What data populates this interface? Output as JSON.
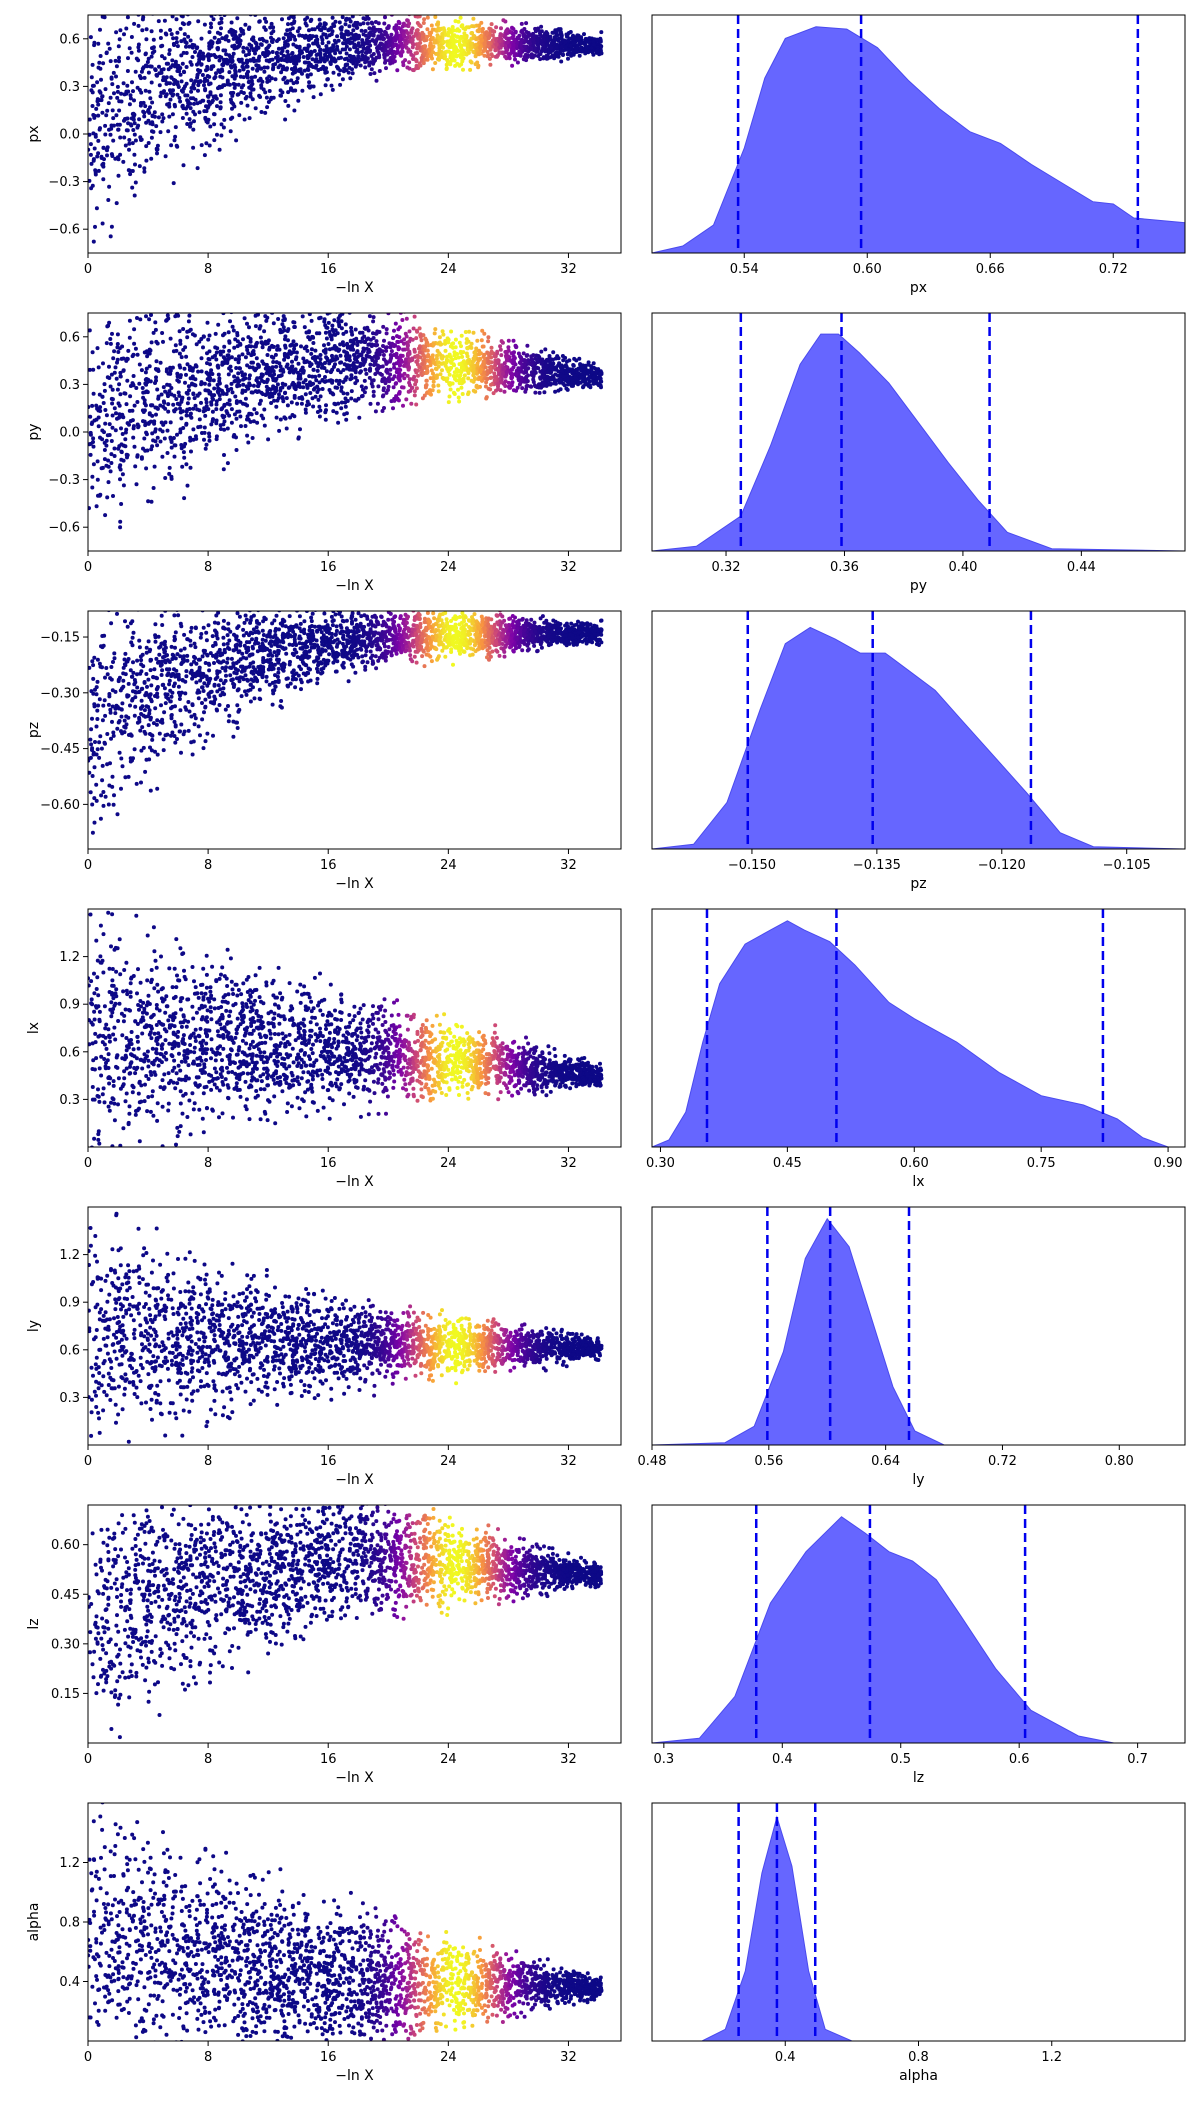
{
  "chart_data": [
    {
      "type": "scatter",
      "param": "px",
      "xlabel": "−ln X",
      "ylabel": "px",
      "xlim": [
        0,
        35.5
      ],
      "ylim": [
        -0.75,
        0.75
      ],
      "xticks": [
        0,
        8,
        16,
        24,
        32
      ],
      "yticks": [
        -0.6,
        -0.3,
        0.0,
        0.3,
        0.6
      ],
      "ytick_labels": [
        "−0.6",
        "−0.3",
        "0.0",
        "0.3",
        "0.6"
      ],
      "converge": 0.56,
      "spread_start": [
        -0.75,
        0.75
      ],
      "spread_mid": [
        0.4,
        0.75
      ],
      "yellow_peak": 24.5,
      "colormap": "plasma"
    },
    {
      "type": "area",
      "param": "px",
      "xlabel": "px",
      "xlim": [
        0.495,
        0.755
      ],
      "xticks": [
        0.54,
        0.6,
        0.66,
        0.72
      ],
      "xtick_labels": [
        "0.54",
        "0.60",
        "0.66",
        "0.72"
      ],
      "quantiles": [
        0.537,
        0.597,
        0.732
      ],
      "density": [
        [
          0.495,
          0.0
        ],
        [
          0.51,
          0.03
        ],
        [
          0.525,
          0.12
        ],
        [
          0.54,
          0.45
        ],
        [
          0.55,
          0.75
        ],
        [
          0.56,
          0.92
        ],
        [
          0.575,
          0.97
        ],
        [
          0.59,
          0.96
        ],
        [
          0.605,
          0.88
        ],
        [
          0.62,
          0.74
        ],
        [
          0.635,
          0.62
        ],
        [
          0.65,
          0.52
        ],
        [
          0.665,
          0.47
        ],
        [
          0.68,
          0.38
        ],
        [
          0.695,
          0.3
        ],
        [
          0.71,
          0.22
        ],
        [
          0.72,
          0.21
        ],
        [
          0.73,
          0.15
        ],
        [
          0.755,
          0.13
        ]
      ]
    },
    {
      "type": "scatter",
      "param": "py",
      "xlabel": "−ln X",
      "ylabel": "py",
      "xlim": [
        0,
        35.5
      ],
      "ylim": [
        -0.75,
        0.75
      ],
      "xticks": [
        0,
        8,
        16,
        24,
        32
      ],
      "yticks": [
        -0.6,
        -0.3,
        0.0,
        0.3,
        0.6
      ],
      "ytick_labels": [
        "−0.6",
        "−0.3",
        "0.0",
        "0.3",
        "0.6"
      ],
      "converge": 0.35,
      "spread_start": [
        -0.75,
        0.75
      ],
      "spread_mid": [
        0.2,
        0.75
      ],
      "yellow_peak": 24.5,
      "colormap": "plasma"
    },
    {
      "type": "area",
      "param": "py",
      "xlabel": "py",
      "xlim": [
        0.295,
        0.475
      ],
      "xticks": [
        0.32,
        0.36,
        0.4,
        0.44
      ],
      "xtick_labels": [
        "0.32",
        "0.36",
        "0.40",
        "0.44"
      ],
      "quantiles": [
        0.325,
        0.359,
        0.409
      ],
      "density": [
        [
          0.295,
          0.0
        ],
        [
          0.31,
          0.02
        ],
        [
          0.325,
          0.15
        ],
        [
          0.335,
          0.45
        ],
        [
          0.345,
          0.8
        ],
        [
          0.352,
          0.93
        ],
        [
          0.358,
          0.93
        ],
        [
          0.365,
          0.85
        ],
        [
          0.375,
          0.72
        ],
        [
          0.385,
          0.55
        ],
        [
          0.395,
          0.38
        ],
        [
          0.405,
          0.22
        ],
        [
          0.415,
          0.08
        ],
        [
          0.43,
          0.01
        ],
        [
          0.475,
          0.0
        ]
      ]
    },
    {
      "type": "scatter",
      "param": "pz",
      "xlabel": "−ln X",
      "ylabel": "pz",
      "xlim": [
        0,
        35.5
      ],
      "ylim": [
        -0.72,
        -0.08
      ],
      "xticks": [
        0,
        8,
        16,
        24,
        32
      ],
      "yticks": [
        -0.6,
        -0.45,
        -0.3,
        -0.15
      ],
      "ytick_labels": [
        "−0.60",
        "−0.45",
        "−0.30",
        "−0.15"
      ],
      "converge": -0.14,
      "spread_start": [
        -0.72,
        -0.08
      ],
      "spread_mid": [
        -0.22,
        -0.08
      ],
      "yellow_peak": 24.5,
      "colormap": "plasma"
    },
    {
      "type": "area",
      "param": "pz",
      "xlabel": "pz",
      "xlim": [
        -0.162,
        -0.098
      ],
      "xticks": [
        -0.15,
        -0.135,
        -0.12,
        -0.105
      ],
      "xtick_labels": [
        "−0.150",
        "−0.135",
        "−0.120",
        "−0.105"
      ],
      "quantiles": [
        -0.1505,
        -0.1355,
        -0.1165
      ],
      "density": [
        [
          -0.162,
          0.0
        ],
        [
          -0.157,
          0.02
        ],
        [
          -0.153,
          0.2
        ],
        [
          -0.149,
          0.6
        ],
        [
          -0.146,
          0.88
        ],
        [
          -0.143,
          0.95
        ],
        [
          -0.14,
          0.9
        ],
        [
          -0.137,
          0.84
        ],
        [
          -0.134,
          0.84
        ],
        [
          -0.131,
          0.76
        ],
        [
          -0.128,
          0.68
        ],
        [
          -0.125,
          0.56
        ],
        [
          -0.121,
          0.4
        ],
        [
          -0.117,
          0.24
        ],
        [
          -0.113,
          0.07
        ],
        [
          -0.109,
          0.01
        ],
        [
          -0.098,
          0.0
        ]
      ]
    },
    {
      "type": "scatter",
      "param": "lx",
      "xlabel": "−ln X",
      "ylabel": "lx",
      "xlim": [
        0,
        35.5
      ],
      "ylim": [
        0.0,
        1.5
      ],
      "xticks": [
        0,
        8,
        16,
        24,
        32
      ],
      "yticks": [
        0.3,
        0.6,
        0.9,
        1.2
      ],
      "ytick_labels": [
        "0.3",
        "0.6",
        "0.9",
        "1.2"
      ],
      "converge": 0.45,
      "spread_start": [
        0.0,
        1.5
      ],
      "spread_mid": [
        0.3,
        0.9
      ],
      "yellow_peak": 24.5,
      "colormap": "plasma"
    },
    {
      "type": "area",
      "param": "lx",
      "xlabel": "lx",
      "xlim": [
        0.29,
        0.92
      ],
      "xticks": [
        0.3,
        0.45,
        0.6,
        0.75,
        0.9
      ],
      "xtick_labels": [
        "0.30",
        "0.45",
        "0.60",
        "0.75",
        "0.90"
      ],
      "quantiles": [
        0.355,
        0.508,
        0.823
      ],
      "density": [
        [
          0.29,
          0.0
        ],
        [
          0.31,
          0.03
        ],
        [
          0.33,
          0.15
        ],
        [
          0.35,
          0.45
        ],
        [
          0.37,
          0.7
        ],
        [
          0.4,
          0.87
        ],
        [
          0.43,
          0.93
        ],
        [
          0.45,
          0.97
        ],
        [
          0.47,
          0.93
        ],
        [
          0.5,
          0.88
        ],
        [
          0.53,
          0.78
        ],
        [
          0.57,
          0.62
        ],
        [
          0.6,
          0.55
        ],
        [
          0.65,
          0.45
        ],
        [
          0.7,
          0.32
        ],
        [
          0.75,
          0.22
        ],
        [
          0.8,
          0.18
        ],
        [
          0.84,
          0.12
        ],
        [
          0.87,
          0.04
        ],
        [
          0.9,
          0.0
        ],
        [
          0.92,
          0.0
        ]
      ]
    },
    {
      "type": "scatter",
      "param": "ly",
      "xlabel": "−ln X",
      "ylabel": "ly",
      "xlim": [
        0,
        35.5
      ],
      "ylim": [
        0.0,
        1.5
      ],
      "xticks": [
        0,
        8,
        16,
        24,
        32
      ],
      "yticks": [
        0.3,
        0.6,
        0.9,
        1.2
      ],
      "ytick_labels": [
        "0.3",
        "0.6",
        "0.9",
        "1.2"
      ],
      "converge": 0.61,
      "spread_start": [
        0.0,
        1.5
      ],
      "spread_mid": [
        0.4,
        0.85
      ],
      "yellow_peak": 24.5,
      "colormap": "plasma"
    },
    {
      "type": "area",
      "param": "ly",
      "xlabel": "ly",
      "xlim": [
        0.48,
        0.845
      ],
      "xticks": [
        0.48,
        0.56,
        0.64,
        0.72,
        0.8
      ],
      "xtick_labels": [
        "0.48",
        "0.56",
        "0.64",
        "0.72",
        "0.80"
      ],
      "quantiles": [
        0.559,
        0.602,
        0.656
      ],
      "density": [
        [
          0.48,
          0.0
        ],
        [
          0.53,
          0.01
        ],
        [
          0.55,
          0.08
        ],
        [
          0.57,
          0.4
        ],
        [
          0.585,
          0.8
        ],
        [
          0.6,
          0.97
        ],
        [
          0.615,
          0.85
        ],
        [
          0.63,
          0.55
        ],
        [
          0.645,
          0.25
        ],
        [
          0.66,
          0.06
        ],
        [
          0.68,
          0.0
        ],
        [
          0.845,
          0.0
        ]
      ]
    },
    {
      "type": "scatter",
      "param": "lz",
      "xlabel": "−ln X",
      "ylabel": "lz",
      "xlim": [
        0,
        35.5
      ],
      "ylim": [
        0.0,
        0.72
      ],
      "xticks": [
        0,
        8,
        16,
        24,
        32
      ],
      "yticks": [
        0.15,
        0.3,
        0.45,
        0.6
      ],
      "ytick_labels": [
        "0.15",
        "0.30",
        "0.45",
        "0.60"
      ],
      "converge": 0.51,
      "spread_start": [
        0.0,
        0.72
      ],
      "spread_mid": [
        0.4,
        0.72
      ],
      "yellow_peak": 24.5,
      "colormap": "plasma"
    },
    {
      "type": "area",
      "param": "lz",
      "xlabel": "lz",
      "xlim": [
        0.29,
        0.74
      ],
      "xticks": [
        0.3,
        0.4,
        0.5,
        0.6,
        0.7
      ],
      "xtick_labels": [
        "0.3",
        "0.4",
        "0.5",
        "0.6",
        "0.7"
      ],
      "quantiles": [
        0.378,
        0.474,
        0.605
      ],
      "density": [
        [
          0.29,
          0.0
        ],
        [
          0.33,
          0.02
        ],
        [
          0.36,
          0.2
        ],
        [
          0.39,
          0.6
        ],
        [
          0.42,
          0.82
        ],
        [
          0.45,
          0.97
        ],
        [
          0.47,
          0.9
        ],
        [
          0.49,
          0.82
        ],
        [
          0.51,
          0.78
        ],
        [
          0.53,
          0.7
        ],
        [
          0.55,
          0.55
        ],
        [
          0.58,
          0.32
        ],
        [
          0.61,
          0.14
        ],
        [
          0.65,
          0.03
        ],
        [
          0.68,
          0.0
        ],
        [
          0.74,
          0.0
        ]
      ]
    },
    {
      "type": "scatter",
      "param": "alpha",
      "xlabel": "−ln X",
      "ylabel": "alpha",
      "xlim": [
        0,
        35.5
      ],
      "ylim": [
        0.0,
        1.6
      ],
      "xticks": [
        0,
        8,
        16,
        24,
        32
      ],
      "yticks": [
        0.4,
        0.8,
        1.2
      ],
      "ytick_labels": [
        "0.4",
        "0.8",
        "1.2"
      ],
      "converge": 0.36,
      "spread_start": [
        0.0,
        1.6
      ],
      "spread_mid": [
        0.0,
        0.8
      ],
      "yellow_peak": 24.5,
      "colormap": "plasma"
    },
    {
      "type": "area",
      "param": "alpha",
      "xlabel": "alpha",
      "xlim": [
        0.0,
        1.6
      ],
      "xticks": [
        0.4,
        0.8,
        1.2
      ],
      "xtick_labels": [
        "0.4",
        "0.8",
        "1.2"
      ],
      "quantiles": [
        0.26,
        0.375,
        0.49
      ],
      "density": [
        [
          0.0,
          0.0
        ],
        [
          0.15,
          0.0
        ],
        [
          0.22,
          0.05
        ],
        [
          0.28,
          0.3
        ],
        [
          0.33,
          0.72
        ],
        [
          0.375,
          0.96
        ],
        [
          0.42,
          0.75
        ],
        [
          0.47,
          0.3
        ],
        [
          0.52,
          0.05
        ],
        [
          0.6,
          0.0
        ],
        [
          1.6,
          0.0
        ]
      ]
    }
  ]
}
